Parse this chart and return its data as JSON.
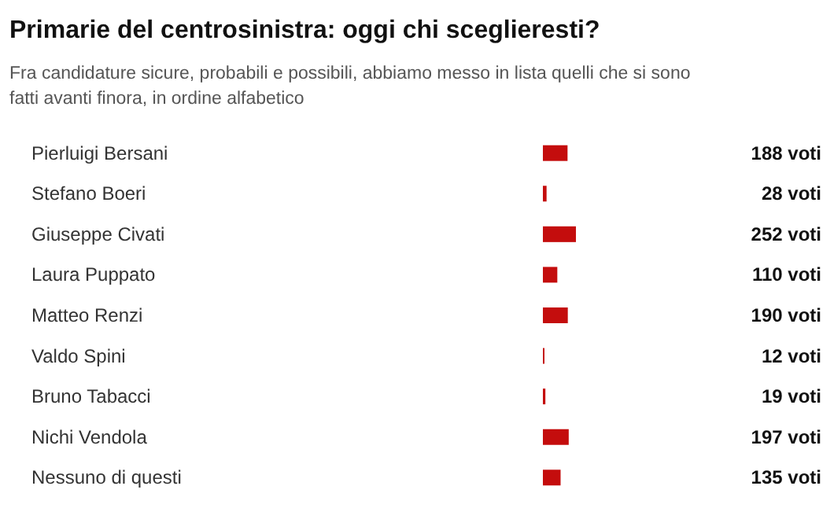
{
  "chart_data": {
    "type": "bar",
    "orientation": "horizontal",
    "title": "Primarie del centrosinistra: oggi chi sceglieresti?",
    "subtitle": "Fra candidature sicure, probabili e possibili, abbiamo messo in lista quelli che si sono fatti avanti finora, in ordine alfabetico",
    "categories": [
      "Pierluigi Bersani",
      "Stefano Boeri",
      "Giuseppe Civati",
      "Laura Puppato",
      "Matteo Renzi",
      "Valdo Spini",
      "Bruno Tabacci",
      "Nichi Vendola",
      "Nessuno di questi"
    ],
    "values": [
      188,
      28,
      252,
      110,
      190,
      12,
      19,
      197,
      135
    ],
    "value_labels": [
      "188 voti",
      "28 voti",
      "252 voti",
      "110 voti",
      "190 voti",
      "12 voti",
      "19 voti",
      "197 voti",
      "135 voti"
    ],
    "color": "#c40d0d"
  }
}
